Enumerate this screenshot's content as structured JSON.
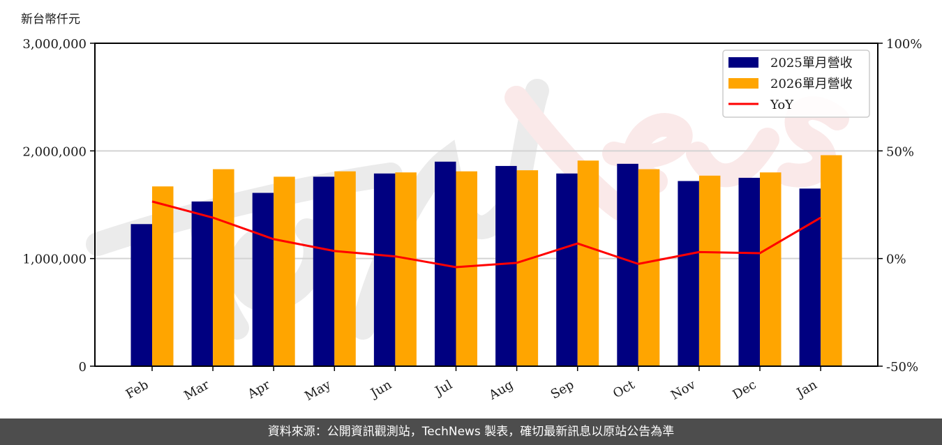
{
  "chart_data": {
    "type": "bar",
    "title": "",
    "ylabel": "新台幣仟元",
    "xlabel": "",
    "categories": [
      "Feb",
      "Mar",
      "Apr",
      "May",
      "Jun",
      "Jul",
      "Aug",
      "Sep",
      "Oct",
      "Nov",
      "Dec",
      "Jan"
    ],
    "series": [
      {
        "name": "2025單月營收",
        "type": "bar",
        "color": "#000080",
        "values": [
          1320000,
          1530000,
          1610000,
          1760000,
          1790000,
          1900000,
          1860000,
          1790000,
          1880000,
          1720000,
          1750000,
          1650000
        ]
      },
      {
        "name": "2026單月營收",
        "type": "bar",
        "color": "#FFA500",
        "values": [
          1670000,
          1830000,
          1760000,
          1810000,
          1800000,
          1810000,
          1820000,
          1910000,
          1830000,
          1770000,
          1800000,
          1960000
        ]
      },
      {
        "name": "YoY",
        "type": "line",
        "axis": "right",
        "color": "#FF0000",
        "values": [
          26.5,
          19.0,
          9.0,
          3.5,
          1.0,
          -4.0,
          -2.0,
          7.0,
          -2.5,
          3.0,
          2.5,
          19.0
        ]
      }
    ],
    "ylim": [
      0,
      3000000
    ],
    "y_ticks": [
      0,
      1000000,
      2000000,
      3000000
    ],
    "y_tick_labels": [
      "0",
      "1,000,000",
      "2,000,000",
      "3,000,000"
    ],
    "y2lim": [
      -50,
      100
    ],
    "y2_ticks": [
      -50,
      0,
      50,
      100
    ],
    "y2_tick_labels": [
      "-50%",
      "0%",
      "50%",
      "100%"
    ],
    "grid": "horizontal",
    "legend_position": "upper right",
    "watermark": "TechNews"
  },
  "footer": {
    "text": "資料來源：公開資訊觀測站，TechNews 製表，確切最新訊息以原站公告為準"
  }
}
